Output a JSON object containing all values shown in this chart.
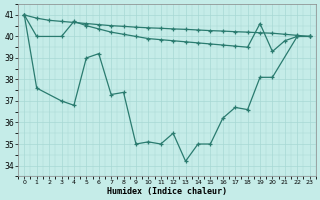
{
  "xlabel": "Humidex (Indice chaleur)",
  "color": "#2a7b6f",
  "bg_color": "#c5ece8",
  "grid_color": "#a8d8d4",
  "ylim": [
    33.5,
    41.5
  ],
  "xlim": [
    -0.5,
    23.5
  ],
  "yticks": [
    34,
    35,
    36,
    37,
    38,
    39,
    40,
    41
  ],
  "xticks": [
    0,
    1,
    2,
    3,
    4,
    5,
    6,
    7,
    8,
    9,
    10,
    11,
    12,
    13,
    14,
    15,
    16,
    17,
    18,
    19,
    20,
    21,
    22,
    23
  ],
  "lineA_x": [
    0,
    1,
    2,
    3,
    4,
    5,
    6,
    7,
    8,
    9,
    10,
    11,
    12,
    13,
    14,
    15,
    16,
    17,
    18,
    19,
    20,
    21,
    22,
    23
  ],
  "lineA_y": [
    41.0,
    40.85,
    40.75,
    40.7,
    40.65,
    40.6,
    40.55,
    40.5,
    40.47,
    40.43,
    40.4,
    40.38,
    40.35,
    40.33,
    40.3,
    40.27,
    40.25,
    40.22,
    40.2,
    40.17,
    40.15,
    40.1,
    40.05,
    40.0
  ],
  "lineB_x": [
    0,
    1,
    3,
    4,
    5,
    6,
    7,
    8,
    9,
    10,
    11,
    12,
    13,
    14,
    15,
    16,
    17,
    18,
    19,
    20,
    21,
    22,
    23
  ],
  "lineB_y": [
    41.0,
    40.0,
    40.0,
    40.7,
    40.5,
    40.35,
    40.2,
    40.1,
    40.0,
    39.9,
    39.85,
    39.8,
    39.75,
    39.7,
    39.65,
    39.6,
    39.55,
    39.5,
    40.6,
    39.3,
    39.8,
    40.0,
    40.0
  ],
  "lineC_x": [
    0,
    1,
    3,
    4,
    5,
    6,
    7,
    8,
    9,
    10,
    11,
    12,
    13,
    14,
    15,
    16,
    17,
    18,
    19,
    20,
    22,
    23
  ],
  "lineC_y": [
    41.0,
    37.6,
    37.0,
    36.8,
    39.0,
    39.2,
    37.3,
    37.4,
    35.0,
    35.1,
    35.0,
    35.5,
    34.2,
    35.0,
    35.0,
    36.2,
    36.7,
    36.6,
    38.1,
    38.1,
    40.0,
    40.0
  ]
}
